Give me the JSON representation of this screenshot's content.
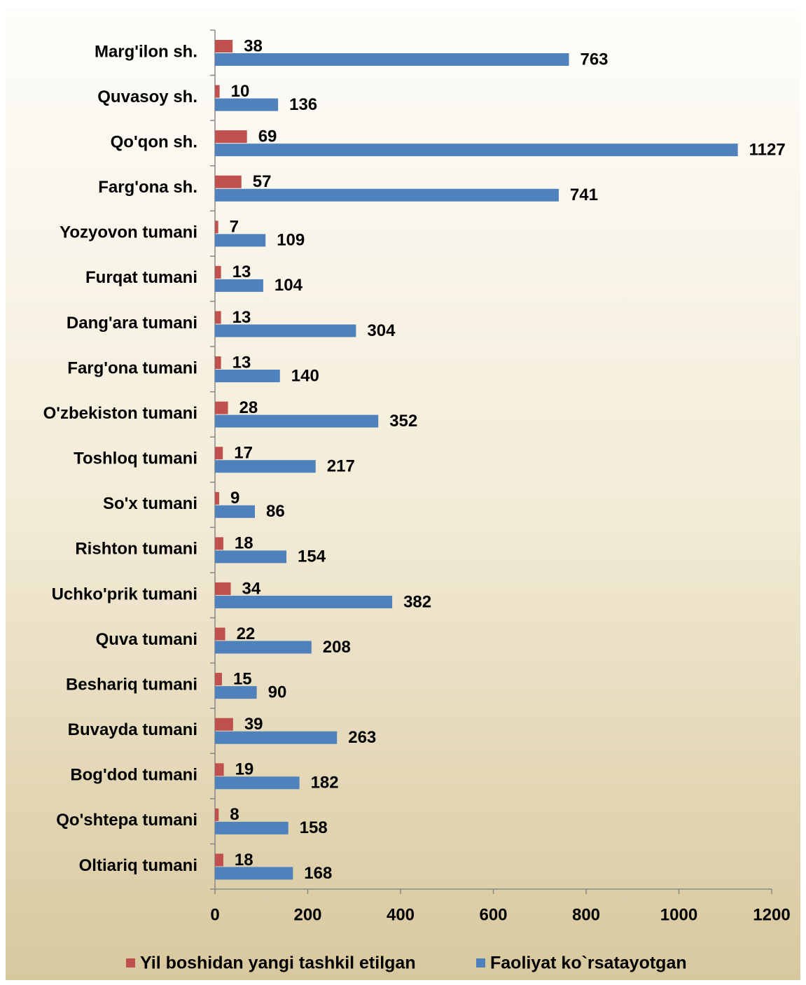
{
  "chart_data": {
    "type": "bar",
    "orientation": "horizontal",
    "categories": [
      "Marg'ilon sh.",
      "Quvasoy sh.",
      "Qo'qon sh.",
      "Farg'ona sh.",
      "Yozyovon tumani",
      "Furqat tumani",
      "Dang'ara tumani",
      "Farg'ona tumani",
      "O'zbekiston tumani",
      "Toshloq tumani",
      "So'x tumani",
      "Rishton tumani",
      "Uchko'prik tumani",
      "Quva tumani",
      "Beshariq tumani",
      "Buvayda tumani",
      "Bog'dod tumani",
      "Qo'shtepa tumani",
      "Oltiariq tumani"
    ],
    "series": [
      {
        "name": "Yil boshidan yangi tashkil etilgan",
        "color": "#c0504d",
        "values": [
          38,
          10,
          69,
          57,
          7,
          13,
          13,
          13,
          28,
          17,
          9,
          18,
          34,
          22,
          15,
          39,
          19,
          8,
          18
        ]
      },
      {
        "name": "Faoliyat ko`rsatayotgan",
        "color": "#4f81bd",
        "values": [
          763,
          136,
          1127,
          741,
          109,
          104,
          304,
          140,
          352,
          217,
          86,
          154,
          382,
          208,
          90,
          263,
          182,
          158,
          168
        ]
      }
    ],
    "xlim": [
      0,
      1200
    ],
    "xticks": [
      0,
      200,
      400,
      600,
      800,
      1000,
      1200
    ],
    "legend": "bottom",
    "grid": false
  }
}
